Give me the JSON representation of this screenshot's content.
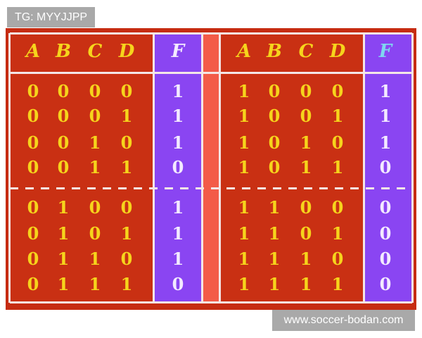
{
  "watermarks": {
    "top_left": "TG: MYYJJPP",
    "bottom_right": "www.soccer-bodan.com"
  },
  "colors": {
    "table_red": "#c93013",
    "output_purple": "#8a45f2",
    "separator_salmon": "#f35b48",
    "input_digits": "#f6d41c",
    "output_digits": "#f3eaff"
  },
  "left_table": {
    "headers": [
      "A",
      "B",
      "C",
      "D"
    ],
    "output_header": "F",
    "rows": [
      {
        "inputs": [
          "0",
          "0",
          "0",
          "0"
        ],
        "F": "1"
      },
      {
        "inputs": [
          "0",
          "0",
          "0",
          "1"
        ],
        "F": "1"
      },
      {
        "inputs": [
          "0",
          "0",
          "1",
          "0"
        ],
        "F": "1"
      },
      {
        "inputs": [
          "0",
          "0",
          "1",
          "1"
        ],
        "F": "0"
      },
      {
        "inputs": [
          "0",
          "1",
          "0",
          "0"
        ],
        "F": "1"
      },
      {
        "inputs": [
          "0",
          "1",
          "0",
          "1"
        ],
        "F": "1"
      },
      {
        "inputs": [
          "0",
          "1",
          "1",
          "0"
        ],
        "F": "1"
      },
      {
        "inputs": [
          "0",
          "1",
          "1",
          "1"
        ],
        "F": "0"
      }
    ]
  },
  "right_table": {
    "headers": [
      "A",
      "B",
      "C",
      "D"
    ],
    "output_header": "F",
    "rows": [
      {
        "inputs": [
          "1",
          "0",
          "0",
          "0"
        ],
        "F": "1"
      },
      {
        "inputs": [
          "1",
          "0",
          "0",
          "1"
        ],
        "F": "1"
      },
      {
        "inputs": [
          "1",
          "0",
          "1",
          "0"
        ],
        "F": "1"
      },
      {
        "inputs": [
          "1",
          "0",
          "1",
          "1"
        ],
        "F": "0"
      },
      {
        "inputs": [
          "1",
          "1",
          "0",
          "0"
        ],
        "F": "0"
      },
      {
        "inputs": [
          "1",
          "1",
          "0",
          "1"
        ],
        "F": "0"
      },
      {
        "inputs": [
          "1",
          "1",
          "1",
          "0"
        ],
        "F": "0"
      },
      {
        "inputs": [
          "1",
          "1",
          "1",
          "1"
        ],
        "F": "0"
      }
    ]
  }
}
